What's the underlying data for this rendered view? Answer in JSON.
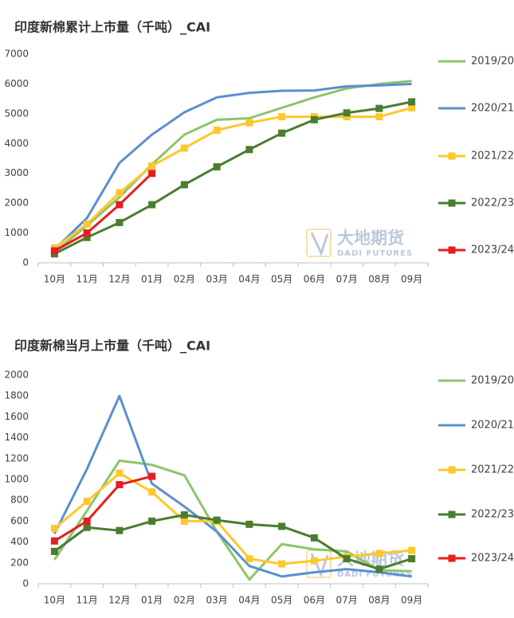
{
  "chart_data": [
    {
      "type": "line",
      "title": "印度新棉累计上市量（千吨）_CAI",
      "categories": [
        "10月",
        "11月",
        "12月",
        "01月",
        "02月",
        "03月",
        "04月",
        "05月",
        "06月",
        "07月",
        "08月",
        "09月"
      ],
      "ylim": [
        0,
        7000
      ],
      "yticks": [
        0,
        1000,
        2000,
        3000,
        4000,
        5000,
        6000,
        7000
      ],
      "watermark": {
        "title": "大地期货",
        "subtitle": "DADI FUTURES"
      },
      "legend": "right",
      "series": [
        {
          "name": "2019/20",
          "color": "#8cc56a",
          "marker": "none",
          "values": [
            350,
            1250,
            2200,
            3300,
            4300,
            4800,
            4850,
            5200,
            5550,
            5850,
            6000,
            6100
          ]
        },
        {
          "name": "2020/21",
          "color": "#5b8fd0",
          "marker": "none",
          "values": [
            450,
            1500,
            3350,
            4300,
            5050,
            5550,
            5700,
            5770,
            5780,
            5920,
            5950,
            6000
          ]
        },
        {
          "name": "2021/22",
          "color": "#ffc72c",
          "marker": "square",
          "values": [
            500,
            1300,
            2350,
            3250,
            3850,
            4450,
            4700,
            4900,
            4900,
            4900,
            4900,
            5200
          ]
        },
        {
          "name": "2022/23",
          "color": "#4a7d2f",
          "marker": "square",
          "values": [
            300,
            850,
            1350,
            1950,
            2620,
            3220,
            3800,
            4350,
            4800,
            5030,
            5180,
            5400
          ]
        },
        {
          "name": "2023/24",
          "color": "#e61e1e",
          "marker": "square",
          "values": [
            400,
            1000,
            1950,
            3000,
            null,
            null,
            null,
            null,
            null,
            null,
            null,
            null
          ]
        }
      ]
    },
    {
      "type": "line",
      "title": "印度新棉当月上市量（千吨）_CAI",
      "categories": [
        "10月",
        "11月",
        "12月",
        "01月",
        "02月",
        "03月",
        "04月",
        "05月",
        "06月",
        "07月",
        "08月",
        "09月"
      ],
      "ylim": [
        0,
        2000
      ],
      "yticks": [
        0,
        200,
        400,
        600,
        800,
        1000,
        1200,
        1400,
        1600,
        1800,
        2000
      ],
      "watermark": {
        "title": "大地期货",
        "subtitle": "DADI FUTURES"
      },
      "legend": "right",
      "series": [
        {
          "name": "2019/20",
          "color": "#8cc56a",
          "marker": "none",
          "values": [
            230,
            700,
            1180,
            1140,
            1040,
            500,
            40,
            380,
            330,
            310,
            130,
            120
          ]
        },
        {
          "name": "2020/21",
          "color": "#5b8fd0",
          "marker": "none",
          "values": [
            480,
            1100,
            1800,
            960,
            740,
            500,
            170,
            70,
            110,
            140,
            110,
            70
          ]
        },
        {
          "name": "2021/22",
          "color": "#ffc72c",
          "marker": "square",
          "values": [
            530,
            790,
            1060,
            880,
            600,
            600,
            240,
            190,
            220,
            260,
            290,
            320
          ]
        },
        {
          "name": "2022/23",
          "color": "#4a7d2f",
          "marker": "square",
          "values": [
            310,
            540,
            510,
            600,
            660,
            610,
            570,
            550,
            440,
            240,
            140,
            240
          ]
        },
        {
          "name": "2023/24",
          "color": "#e61e1e",
          "marker": "square",
          "values": [
            410,
            600,
            950,
            1030,
            null,
            null,
            null,
            null,
            null,
            null,
            null,
            null
          ]
        }
      ]
    }
  ]
}
